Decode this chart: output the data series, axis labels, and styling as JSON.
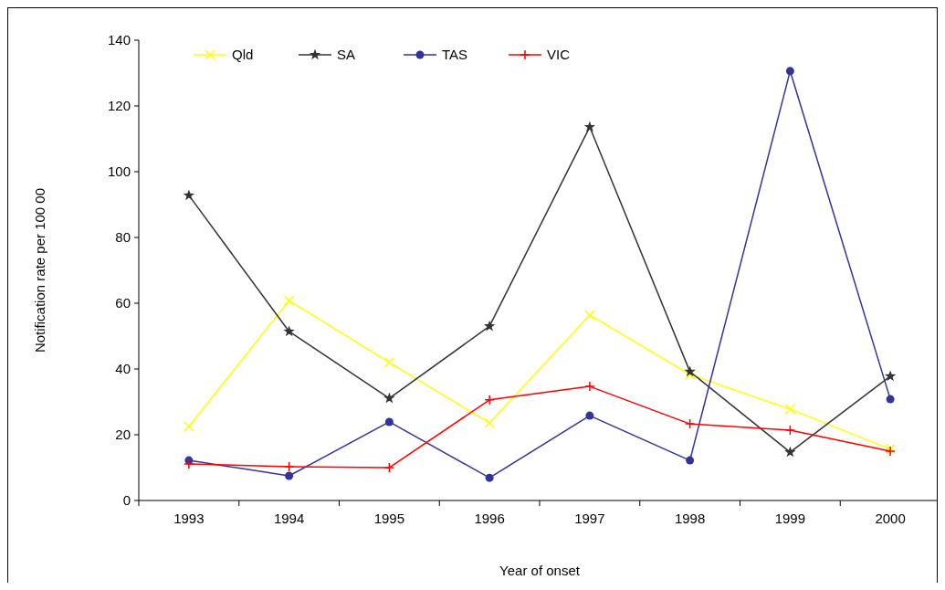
{
  "chart_data": {
    "type": "line",
    "xlabel": "Year of onset",
    "ylabel": "Notification rate per 100 00",
    "categories": [
      "1993",
      "1994",
      "1995",
      "1996",
      "1997",
      "1998",
      "1999",
      "2000"
    ],
    "series": [
      {
        "name": "Qld",
        "color": "#ffff00",
        "marker": "cross",
        "values": [
          22.5,
          60.8,
          42,
          23.6,
          56.4,
          38.3,
          27.8,
          15.6
        ]
      },
      {
        "name": "SA",
        "color": "#333333",
        "marker": "star",
        "values": [
          92.8,
          51.4,
          31.1,
          53,
          113.6,
          39.2,
          14.7,
          37.8
        ]
      },
      {
        "name": "TAS",
        "color": "#333399",
        "marker": "circle",
        "values": [
          12.2,
          7.5,
          23.9,
          6.9,
          25.8,
          12.2,
          130.6,
          30.8
        ]
      },
      {
        "name": "VIC",
        "color": "#ff0000",
        "marker": "plus",
        "values": [
          11.1,
          10.3,
          10,
          30.6,
          34.7,
          23.3,
          21.4,
          15
        ]
      }
    ],
    "ylim": [
      0,
      140
    ],
    "yticks": [
      0,
      20,
      40,
      60,
      80,
      100,
      120,
      140
    ],
    "grid": false,
    "legend": "top left",
    "line_style": "solid"
  }
}
